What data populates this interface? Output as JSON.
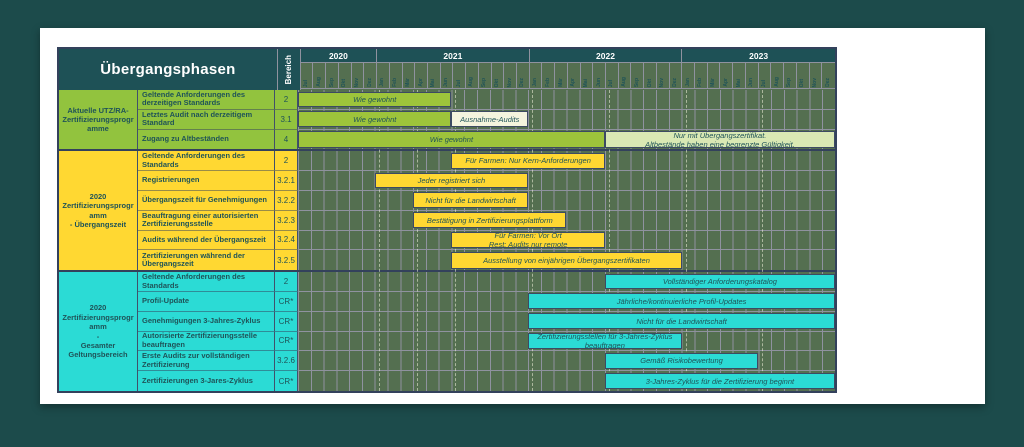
{
  "header": {
    "title": "Übergangsphasen",
    "bereich_label": "Bereich"
  },
  "colors": {
    "background": "#1C4B4B",
    "card": "#FFFFFF",
    "header_teal": "#1E5156",
    "grid_cell": "#546F50",
    "grid_line": "#8F929F",
    "text_teal": "#1F5358",
    "green": "#92C33E",
    "yellow": "#FFD832",
    "cyan": "#2BDBD5",
    "cream": "#F4F4DE",
    "palegreen": "#D9E8B4"
  },
  "timeline": {
    "total_columns": 42,
    "years": [
      {
        "label": "2020",
        "months": 6
      },
      {
        "label": "2021",
        "months": 12
      },
      {
        "label": "2022",
        "months": 12
      },
      {
        "label": "2023",
        "months": 12
      }
    ],
    "months": [
      "Jul",
      "Aug",
      "Sep",
      "Okt",
      "Nov",
      "Dez",
      "Jan",
      "Feb",
      "Mär",
      "Apr",
      "Mai",
      "Jun",
      "Jul",
      "Aug",
      "Sep",
      "Okt",
      "Nov",
      "Dez",
      "Jan",
      "Feb",
      "Mär",
      "Apr",
      "Mai",
      "Jun",
      "Jul",
      "Aug",
      "Sep",
      "Okt",
      "Nov",
      "Dez",
      "Jan",
      "Feb",
      "Mär",
      "Apr",
      "Mai",
      "Jun",
      "Jul",
      "Aug",
      "Sep",
      "Okt",
      "Nov",
      "Dez"
    ],
    "guide_columns": [
      7,
      10,
      13,
      19,
      25,
      31,
      37
    ]
  },
  "groups": [
    {
      "label": "Aktuelle UTZ/RA-\nZertifizierungsprogramme",
      "color": "green",
      "rows": [
        {
          "label": "Geltende Anforderungen des derzeitigen Standards",
          "bereich": "2",
          "bars": [
            {
              "start": 1,
              "end": 12,
              "style": "green",
              "text": "Wie gewohnt"
            }
          ]
        },
        {
          "label": "Letztes Audit nach derzeitigem Standard",
          "bereich": "3.1",
          "bars": [
            {
              "start": 1,
              "end": 12,
              "style": "green",
              "text": "Wie gewohnt"
            },
            {
              "start": 13,
              "end": 18,
              "style": "cream",
              "text": "Ausnahme-Audits"
            }
          ]
        },
        {
          "label": "Zugang zu Altbeständen",
          "bereich": "4",
          "bars": [
            {
              "start": 1,
              "end": 24,
              "style": "green",
              "text": "Wie gewohnt"
            },
            {
              "start": 25,
              "end": 42,
              "style": "palegreen",
              "text": "Nur mit Übergangszertifikat.\nAltbestände haben eine begrenzte Gültigkeit."
            }
          ]
        }
      ]
    },
    {
      "label": "2020\nZertifizierungsprogramm\n- Übergangszeit",
      "color": "yellow",
      "rows": [
        {
          "label": "Geltende Anforderungen des Standards",
          "bereich": "2",
          "bars": [
            {
              "start": 13,
              "end": 24,
              "style": "yellow",
              "text": "Für Farmen: Nur Kern-Anforderungen"
            }
          ]
        },
        {
          "label": "Registrierungen",
          "bereich": "3.2.1",
          "bars": [
            {
              "start": 7,
              "end": 18,
              "style": "yellow",
              "text": "Jeder registriert sich"
            }
          ]
        },
        {
          "label": "Übergangszeit für Genehmigungen",
          "bereich": "3.2.2",
          "bars": [
            {
              "start": 10,
              "end": 18,
              "style": "yellow",
              "text": "Nicht für die Landwirtschaft"
            }
          ]
        },
        {
          "label": "Beauftragung einer autorisierten Zertifizierungsstelle",
          "bereich": "3.2.3",
          "bars": [
            {
              "start": 10,
              "end": 21,
              "style": "yellow",
              "text": "Bestätigung in Zertifizierungsplattform"
            }
          ]
        },
        {
          "label": "Audits während der Übergangszeit",
          "bereich": "3.2.4",
          "bars": [
            {
              "start": 13,
              "end": 24,
              "style": "yellow",
              "text": "Für Farmen: Vor Ort\nRest: Audits nur remote"
            }
          ]
        },
        {
          "label": "Zertifizierungen während der Übergangszeit",
          "bereich": "3.2.5",
          "bars": [
            {
              "start": 13,
              "end": 30,
              "style": "yellow",
              "text": "Ausstellung von einjährigen Übergangszertifikaten"
            }
          ]
        }
      ]
    },
    {
      "label": "2020\nZertifizierungsprogramm\n-\nGesamter\nGeltungsbereich",
      "color": "cyan",
      "rows": [
        {
          "label": "Geltende Anforderungen des Standards",
          "bereich": "2",
          "bars": [
            {
              "start": 25,
              "end": 42,
              "style": "cyan",
              "text": "Vollständiger Anforderungskatalog"
            }
          ]
        },
        {
          "label": "Profil-Update",
          "bereich": "CR*",
          "bars": [
            {
              "start": 19,
              "end": 42,
              "style": "cyan",
              "text": "Jährliche/kontinuierliche Profil-Updates"
            }
          ]
        },
        {
          "label": "Genehmigungen 3-Jahres-Zyklus",
          "bereich": "CR*",
          "bars": [
            {
              "start": 19,
              "end": 42,
              "style": "cyan",
              "text": "Nicht für die Landwirtschaft"
            }
          ]
        },
        {
          "label": "Autorisierte Zertifizierungsstelle beauftragen",
          "bereich": "CR*",
          "bars": [
            {
              "start": 19,
              "end": 30,
              "style": "cyan",
              "text": "Zertifizierungsstellen für 3-Jahres-Zyklus beauftragen"
            }
          ]
        },
        {
          "label": "Erste Audits zur vollständigen Zertifizierung",
          "bereich": "3.2.6",
          "bars": [
            {
              "start": 25,
              "end": 36,
              "style": "cyan",
              "text": "Gemäß Risikobewertung"
            }
          ]
        },
        {
          "label": "Zertifizierungen 3-Jares-Zyklus",
          "bereich": "CR*",
          "bars": [
            {
              "start": 25,
              "end": 42,
              "style": "cyan",
              "text": "3-Jahres-Zyklus für die Zertifizierung beginnt"
            }
          ]
        }
      ]
    }
  ],
  "chart_data": {
    "type": "gantt",
    "title": "Übergangsphasen",
    "time_axis": {
      "start": "2020-07",
      "end": "2023-12",
      "unit": "month",
      "year_labels": [
        "2020",
        "2021",
        "2022",
        "2023"
      ]
    },
    "tasks": [
      {
        "group": "Aktuelle UTZ/RA-Zertifizierungsprogramme",
        "task": "Geltende Anforderungen des derzeitigen Standards",
        "bereich": "2",
        "bars": [
          {
            "from": "2020-07",
            "to": "2021-06",
            "label": "Wie gewohnt",
            "color": "#9DC43B"
          }
        ]
      },
      {
        "group": "Aktuelle UTZ/RA-Zertifizierungsprogramme",
        "task": "Letztes Audit nach derzeitigem Standard",
        "bereich": "3.1",
        "bars": [
          {
            "from": "2020-07",
            "to": "2021-06",
            "label": "Wie gewohnt",
            "color": "#9DC43B"
          },
          {
            "from": "2021-07",
            "to": "2021-12",
            "label": "Ausnahme-Audits",
            "color": "#F4F4DE"
          }
        ]
      },
      {
        "group": "Aktuelle UTZ/RA-Zertifizierungsprogramme",
        "task": "Zugang zu Altbeständen",
        "bereich": "4",
        "bars": [
          {
            "from": "2020-07",
            "to": "2022-06",
            "label": "Wie gewohnt",
            "color": "#9DC43B"
          },
          {
            "from": "2022-07",
            "to": "2023-12",
            "label": "Nur mit Übergangszertifikat. Altbestände haben eine begrenzte Gültigkeit.",
            "color": "#D9E8B4"
          }
        ]
      },
      {
        "group": "2020 Zertifizierungsprogramm - Übergangszeit",
        "task": "Geltende Anforderungen des Standards",
        "bereich": "2",
        "bars": [
          {
            "from": "2021-07",
            "to": "2022-06",
            "label": "Für Farmen: Nur Kern-Anforderungen",
            "color": "#FFD832"
          }
        ]
      },
      {
        "group": "2020 Zertifizierungsprogramm - Übergangszeit",
        "task": "Registrierungen",
        "bereich": "3.2.1",
        "bars": [
          {
            "from": "2021-01",
            "to": "2021-12",
            "label": "Jeder registriert sich",
            "color": "#FFD832"
          }
        ]
      },
      {
        "group": "2020 Zertifizierungsprogramm - Übergangszeit",
        "task": "Übergangszeit für Genehmigungen",
        "bereich": "3.2.2",
        "bars": [
          {
            "from": "2021-04",
            "to": "2021-12",
            "label": "Nicht für die Landwirtschaft",
            "color": "#FFD832"
          }
        ]
      },
      {
        "group": "2020 Zertifizierungsprogramm - Übergangszeit",
        "task": "Beauftragung einer autorisierten Zertifizierungsstelle",
        "bereich": "3.2.3",
        "bars": [
          {
            "from": "2021-04",
            "to": "2022-03",
            "label": "Bestätigung in Zertifizierungsplattform",
            "color": "#FFD832"
          }
        ]
      },
      {
        "group": "2020 Zertifizierungsprogramm - Übergangszeit",
        "task": "Audits während der Übergangszeit",
        "bereich": "3.2.4",
        "bars": [
          {
            "from": "2021-07",
            "to": "2022-06",
            "label": "Für Farmen: Vor Ort / Rest: Audits nur remote",
            "color": "#FFD832"
          }
        ]
      },
      {
        "group": "2020 Zertifizierungsprogramm - Übergangszeit",
        "task": "Zertifizierungen während der Übergangszeit",
        "bereich": "3.2.5",
        "bars": [
          {
            "from": "2021-07",
            "to": "2022-12",
            "label": "Ausstellung von einjährigen Übergangszertifikaten",
            "color": "#FFD832"
          }
        ]
      },
      {
        "group": "2020 Zertifizierungsprogramm - Gesamter Geltungsbereich",
        "task": "Geltende Anforderungen des Standards",
        "bereich": "2",
        "bars": [
          {
            "from": "2022-07",
            "to": "2023-12",
            "label": "Vollständiger Anforderungskatalog",
            "color": "#2BDBD5"
          }
        ]
      },
      {
        "group": "2020 Zertifizierungsprogramm - Gesamter Geltungsbereich",
        "task": "Profil-Update",
        "bereich": "CR*",
        "bars": [
          {
            "from": "2022-01",
            "to": "2023-12",
            "label": "Jährliche/kontinuierliche Profil-Updates",
            "color": "#2BDBD5"
          }
        ]
      },
      {
        "group": "2020 Zertifizierungsprogramm - Gesamter Geltungsbereich",
        "task": "Genehmigungen 3-Jahres-Zyklus",
        "bereich": "CR*",
        "bars": [
          {
            "from": "2022-01",
            "to": "2023-12",
            "label": "Nicht für die Landwirtschaft",
            "color": "#2BDBD5"
          }
        ]
      },
      {
        "group": "2020 Zertifizierungsprogramm - Gesamter Geltungsbereich",
        "task": "Autorisierte Zertifizierungsstelle beauftragen",
        "bereich": "CR*",
        "bars": [
          {
            "from": "2022-01",
            "to": "2022-12",
            "label": "Zertifizierungsstellen für 3-Jahres-Zyklus beauftragen",
            "color": "#2BDBD5"
          }
        ]
      },
      {
        "group": "2020 Zertifizierungsprogramm - Gesamter Geltungsbereich",
        "task": "Erste Audits zur vollständigen Zertifizierung",
        "bereich": "3.2.6",
        "bars": [
          {
            "from": "2022-07",
            "to": "2023-06",
            "label": "Gemäß Risikobewertung",
            "color": "#2BDBD5"
          }
        ]
      },
      {
        "group": "2020 Zertifizierungsprogramm - Gesamter Geltungsbereich",
        "task": "Zertifizierungen 3-Jares-Zyklus",
        "bereich": "CR*",
        "bars": [
          {
            "from": "2022-07",
            "to": "2023-12",
            "label": "3-Jahres-Zyklus für die Zertifizierung beginnt",
            "color": "#2BDBD5"
          }
        ]
      }
    ]
  }
}
